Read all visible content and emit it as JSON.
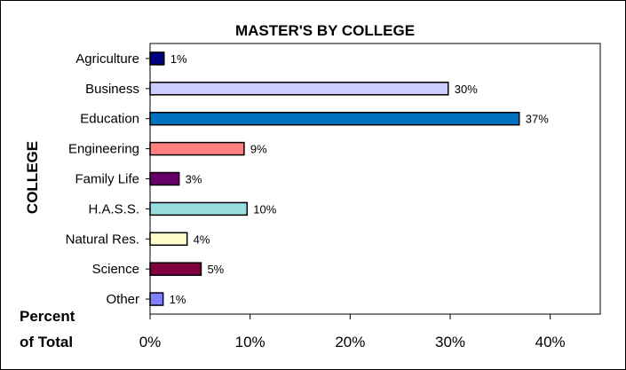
{
  "chart_data": {
    "type": "bar",
    "orientation": "horizontal",
    "title": "MASTER'S BY COLLEGE",
    "ylabel": "COLLEGE",
    "xlabel": [
      "Percent",
      "of Total"
    ],
    "categories": [
      "Agriculture",
      "Business",
      "Education",
      "Engineering",
      "Family Life",
      "H.A.S.S.",
      "Natural Res.",
      "Science",
      "Other"
    ],
    "values": [
      1.4,
      29.8,
      36.9,
      9.4,
      2.9,
      9.7,
      3.7,
      5.1,
      1.3
    ],
    "data_labels": [
      "1%",
      "30%",
      "37%",
      "9%",
      "3%",
      "10%",
      "4%",
      "5%",
      "1%"
    ],
    "colors": [
      "#000080",
      "#ccccff",
      "#0070c0",
      "#ff8080",
      "#660066",
      "#99dddd",
      "#ffffcc",
      "#800040",
      "#8080ff"
    ],
    "xlim": [
      0,
      45
    ],
    "xticks": [
      0,
      10,
      20,
      30,
      40
    ],
    "xtick_labels": [
      "0%",
      "10%",
      "20%",
      "30%",
      "40%"
    ],
    "grid": false,
    "legend": "none"
  }
}
